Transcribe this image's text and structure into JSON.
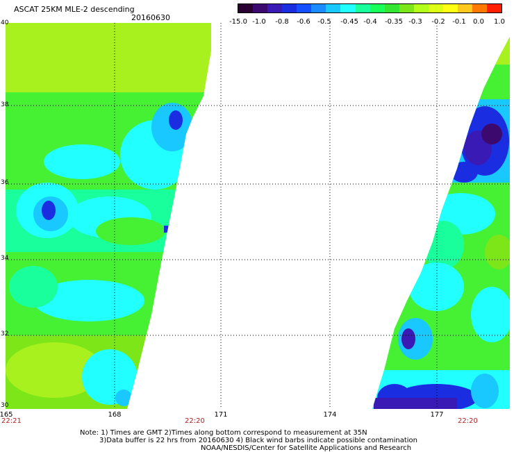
{
  "header": {
    "title": "ASCAT 25KM MLE-2 descending",
    "date": "20160630"
  },
  "colorbar": {
    "labels": [
      "-15.0",
      "-1.0",
      "-0.8",
      "-0.6",
      "-0.5",
      "-0.45",
      "-0.4",
      "-0.35",
      "-0.3",
      "-0.2",
      "-0.1",
      "0.0",
      "1.0"
    ],
    "colors": [
      "#2a0030",
      "#3c0a6e",
      "#3a1ab4",
      "#1a2de0",
      "#1550ff",
      "#1a8cff",
      "#19c8ff",
      "#22ffff",
      "#19ff9c",
      "#19ff5a",
      "#32e632",
      "#7ce619",
      "#b4ff19",
      "#dcff14",
      "#ffff14",
      "#ffc81e",
      "#ff7800",
      "#ff1e00"
    ]
  },
  "map": {
    "lat_labels": [
      "40",
      "38",
      "36",
      "34",
      "32",
      "30"
    ],
    "lon_labels": [
      "165",
      "168",
      "171",
      "174",
      "177"
    ],
    "time_labels": [
      "22:21",
      "22:20",
      "22:20"
    ]
  },
  "footer": {
    "line1": "Note: 1) Times are GMT 2)Times along bottom correspond to measurement at 35N",
    "line2": "3)Data buffer is 22 hrs from 20160630 4) Black wind barbs indicate possible contamination",
    "line3": "NOAA/NESDIS/Center for Satellite Applications and Research"
  }
}
